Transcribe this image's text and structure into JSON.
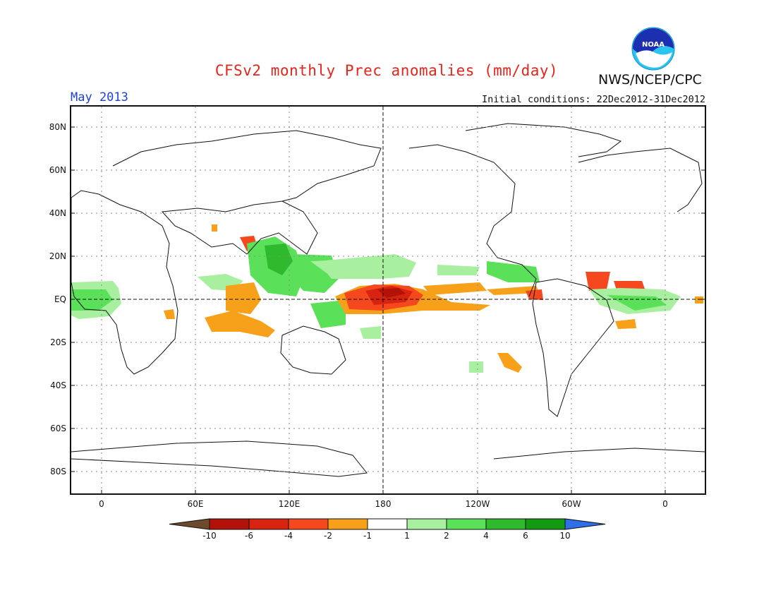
{
  "header": {
    "title": "CFSv2 monthly Prec anomalies (mm/day)",
    "agency": "NWS/NCEP/CPC",
    "period": "May 2013",
    "initial_conditions": "Initial conditions: 22Dec2012-31Dec2012",
    "logo_text": "NOAA"
  },
  "axes": {
    "lat_labels": [
      "80N",
      "60N",
      "40N",
      "20N",
      "EQ",
      "20S",
      "40S",
      "60S",
      "80S"
    ],
    "lon_labels": [
      "0",
      "60E",
      "120E",
      "180",
      "120W",
      "60W",
      "0"
    ]
  },
  "colorbar": {
    "labels": [
      "-10",
      "-6",
      "-4",
      "-2",
      "-1",
      "1",
      "2",
      "4",
      "6",
      "10"
    ],
    "colors": [
      "#6e4a2d",
      "#b31208",
      "#d7230f",
      "#f5481e",
      "#f7a11a",
      "#ffffff",
      "#a8f0a0",
      "#5be05a",
      "#2fb92d",
      "#139a13",
      "#2f6fe8"
    ]
  },
  "colors": {
    "title": "#e8231b",
    "period": "#1f3fe0",
    "coast": "#111111"
  }
}
